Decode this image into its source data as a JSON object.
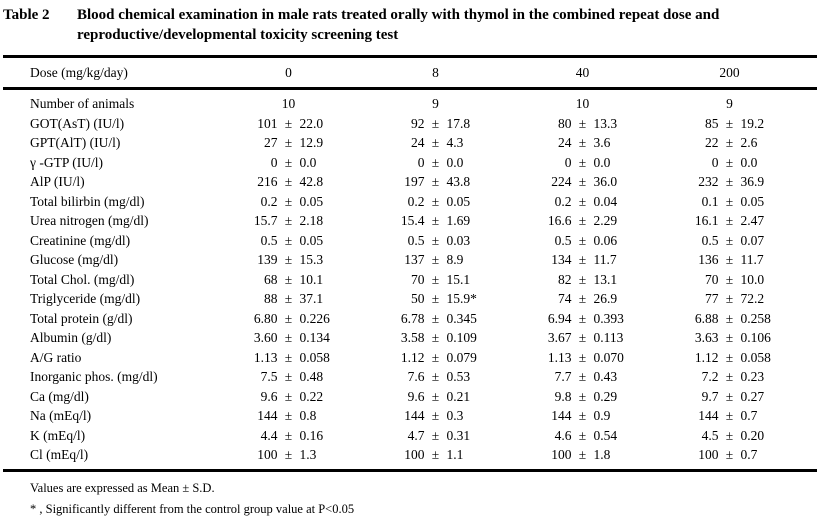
{
  "title": {
    "label": "Table 2",
    "caption_line1": "Blood chemical examination in male rats treated orally with thymol in the combined repeat dose and",
    "caption_line2": "reproductive/developmental toxicity screening test"
  },
  "table": {
    "header_label": "Dose (mg/kg/day)",
    "doses": [
      "0",
      "8",
      "40",
      "200"
    ],
    "rows": [
      {
        "label": "Number of animals",
        "values": [
          "10",
          "9",
          "10",
          "9"
        ]
      },
      {
        "label": "GOT(AsT) (IU/l)",
        "values": [
          "101 ± 22.0",
          "92 ± 17.8",
          "80 ± 13.3",
          "85 ± 19.2"
        ]
      },
      {
        "label": "GPT(AlT) (IU/l)",
        "values": [
          "27 ± 12.9",
          "24 ± 4.3",
          "24 ± 3.6",
          "22 ± 2.6"
        ]
      },
      {
        "label": "γ -GTP (IU/l)",
        "values": [
          "0 ± 0.0",
          "0 ± 0.0",
          "0 ± 0.0",
          "0 ± 0.0"
        ]
      },
      {
        "label": "AlP (IU/l)",
        "values": [
          "216 ± 42.8",
          "197 ± 43.8",
          "224 ± 36.0",
          "232 ± 36.9"
        ]
      },
      {
        "label": "Total bilirbin (mg/dl)",
        "values": [
          "0.2 ± 0.05",
          "0.2 ± 0.05",
          "0.2 ± 0.04",
          "0.1 ± 0.05"
        ]
      },
      {
        "label": "Urea nitrogen (mg/dl)",
        "values": [
          "15.7 ± 2.18",
          "15.4 ± 1.69",
          "16.6 ± 2.29",
          "16.1 ± 2.47"
        ]
      },
      {
        "label": "Creatinine (mg/dl)",
        "values": [
          "0.5 ± 0.05",
          "0.5 ± 0.03",
          "0.5 ± 0.06",
          "0.5 ± 0.07"
        ]
      },
      {
        "label": "Glucose (mg/dl)",
        "values": [
          "139 ± 15.3",
          "137 ± 8.9",
          "134 ± 11.7",
          "136 ± 11.7"
        ]
      },
      {
        "label": "Total Chol. (mg/dl)",
        "values": [
          "68 ± 10.1",
          "70 ± 15.1",
          "82 ± 13.1",
          "70 ± 10.0"
        ]
      },
      {
        "label": "Triglyceride (mg/dl)",
        "values": [
          "88 ± 37.1",
          "50 ± 15.9*",
          "74 ± 26.9",
          "77 ± 72.2"
        ]
      },
      {
        "label": "Total protein (g/dl)",
        "values": [
          "6.80 ± 0.226",
          "6.78 ± 0.345",
          "6.94 ± 0.393",
          "6.88 ± 0.258"
        ]
      },
      {
        "label": "Albumin (g/dl)",
        "values": [
          "3.60 ± 0.134",
          "3.58 ± 0.109",
          "3.67 ± 0.113",
          "3.63 ± 0.106"
        ]
      },
      {
        "label": "A/G ratio",
        "values": [
          "1.13 ± 0.058",
          "1.12 ± 0.079",
          "1.13 ± 0.070",
          "1.12 ± 0.058"
        ]
      },
      {
        "label": "Inorganic phos. (mg/dl)",
        "values": [
          "7.5 ± 0.48",
          "7.6 ± 0.53",
          "7.7 ± 0.43",
          "7.2 ± 0.23"
        ]
      },
      {
        "label": "Ca (mg/dl)",
        "values": [
          "9.6 ± 0.22",
          "9.6 ± 0.21",
          "9.8 ± 0.29",
          "9.7 ± 0.27"
        ]
      },
      {
        "label": "Na (mEq/l)",
        "values": [
          "144 ± 0.8",
          "144 ± 0.3",
          "144 ± 0.9",
          "144 ± 0.7"
        ]
      },
      {
        "label": "K (mEq/l)",
        "values": [
          "4.4 ± 0.16",
          "4.7 ± 0.31",
          "4.6 ± 0.54",
          "4.5 ± 0.20"
        ]
      },
      {
        "label": "Cl (mEq/l)",
        "values": [
          "100 ± 1.3",
          "100 ± 1.1",
          "100 ± 1.8",
          "100 ± 0.7"
        ]
      }
    ]
  },
  "footnotes": [
    "Values are expressed as Mean ± S.D.",
    "* , Significantly different from the control group value at P<0.05"
  ]
}
